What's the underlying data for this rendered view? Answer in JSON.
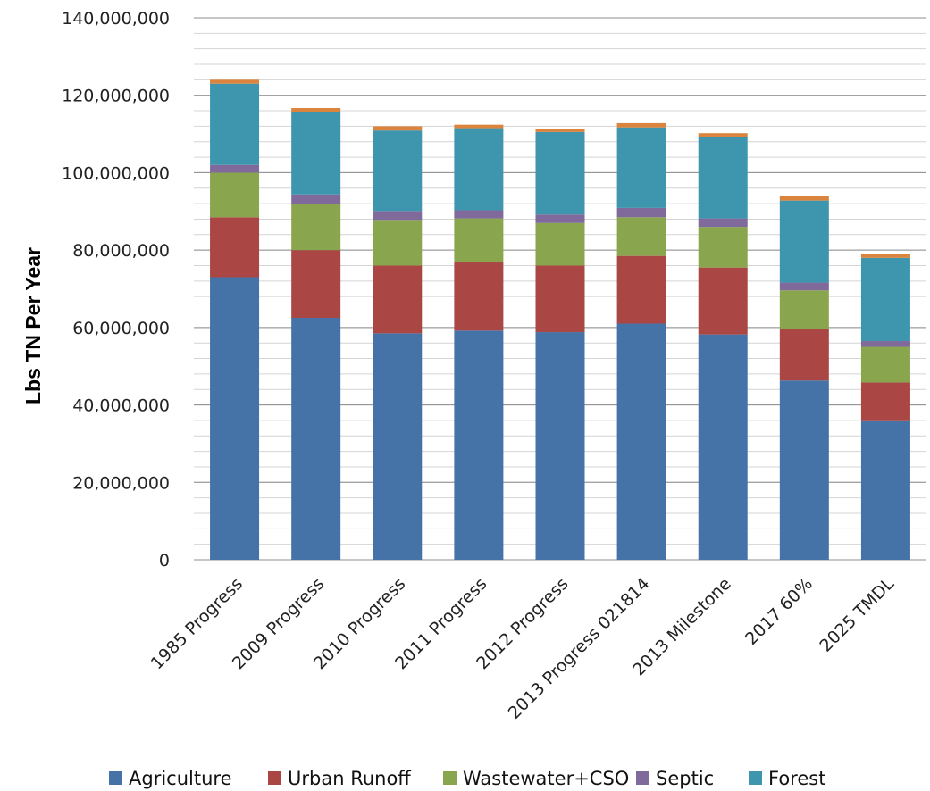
{
  "chart_data": {
    "type": "bar",
    "stacked": true,
    "categories": [
      "1985 Progress",
      "2009 Progress",
      "2010 Progress",
      "2011 Progress",
      "2012 Progress",
      "2013 Progress 021814",
      "2013 Milestone",
      "2017 60%",
      "2025 TMDL"
    ],
    "series": [
      {
        "name": "Agriculture",
        "color": "#4572A7",
        "values": [
          73000000,
          62500000,
          58500000,
          59200000,
          58800000,
          61000000,
          58200000,
          46300000,
          35800000
        ]
      },
      {
        "name": "Urban Runoff",
        "color": "#AA4643",
        "values": [
          15500000,
          17500000,
          17500000,
          17600000,
          17200000,
          17500000,
          17300000,
          13300000,
          10000000
        ]
      },
      {
        "name": "Wastewater+CSO",
        "color": "#89A54E",
        "values": [
          11500000,
          12000000,
          11800000,
          11400000,
          11000000,
          10000000,
          10500000,
          10000000,
          9200000
        ]
      },
      {
        "name": "Septic",
        "color": "#80699B",
        "values": [
          2000000,
          2400000,
          2300000,
          2100000,
          2200000,
          2400000,
          2200000,
          2000000,
          1500000
        ]
      },
      {
        "name": "Forest",
        "color": "#3D96AE",
        "values": [
          21000000,
          21300000,
          20800000,
          21200000,
          21300000,
          20800000,
          21000000,
          21200000,
          21500000
        ]
      },
      {
        "color": "#DB843D",
        "values": [
          1000000,
          1000000,
          1100000,
          900000,
          900000,
          1100000,
          1000000,
          1200000,
          1100000
        ]
      }
    ],
    "ylabel": "Lbs TN Per Year",
    "ylim": [
      0,
      140000000
    ],
    "yticks": [
      "0",
      "20,000,000",
      "40,000,000",
      "60,000,000",
      "80,000,000",
      "100,000,000",
      "120,000,000",
      "140,000,000"
    ],
    "minor_step": 4000000,
    "grid": true,
    "legend_position": "bottom"
  }
}
